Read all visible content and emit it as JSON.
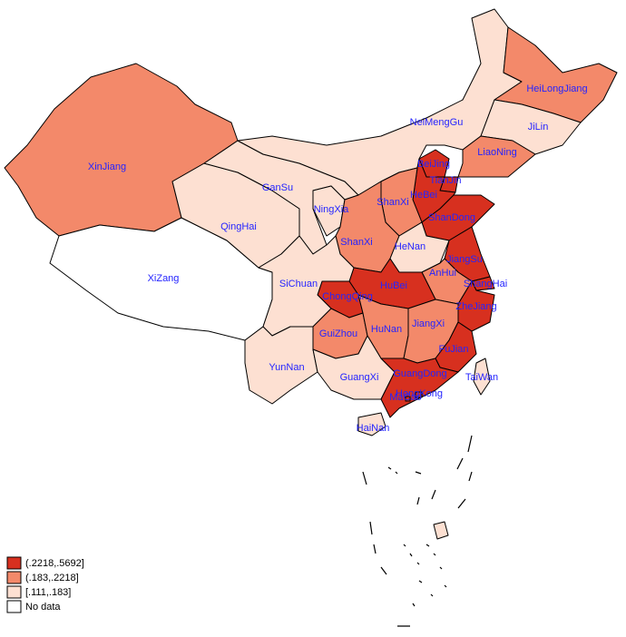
{
  "map": {
    "regions": [
      {
        "label": "XinJiang",
        "color": "#f3896a"
      },
      {
        "label": "XiZang",
        "color": "#ffffff"
      },
      {
        "label": "QingHai",
        "color": "#fde0d2"
      },
      {
        "label": "GanSu",
        "color": "#fde0d2"
      },
      {
        "label": "NingXia",
        "color": "#fde0d2"
      },
      {
        "label": "NeiMengGu",
        "color": "#fde0d2"
      },
      {
        "label": "HeiLongJiang",
        "color": "#f3896a"
      },
      {
        "label": "JiLin",
        "color": "#fde0d2"
      },
      {
        "label": "LiaoNing",
        "color": "#f3896a"
      },
      {
        "label": "BeiJing",
        "color": "#d7301f"
      },
      {
        "label": "TianJin",
        "color": "#d7301f"
      },
      {
        "label": "HeBei",
        "color": "#d7301f"
      },
      {
        "label": "ShanXi",
        "color": "#f3896a"
      },
      {
        "label": "ShanDong",
        "color": "#d7301f"
      },
      {
        "label": "ShanXi",
        "color": "#f3896a"
      },
      {
        "label": "HeNan",
        "color": "#fde0d2"
      },
      {
        "label": "JiangSu",
        "color": "#d7301f"
      },
      {
        "label": "AnHui",
        "color": "#f3896a"
      },
      {
        "label": "ShangHai",
        "color": "#d7301f"
      },
      {
        "label": "HuBei",
        "color": "#d7301f"
      },
      {
        "label": "ChongQing",
        "color": "#d7301f"
      },
      {
        "label": "SiChuan",
        "color": "#fde0d2"
      },
      {
        "label": "ZheJiang",
        "color": "#d7301f"
      },
      {
        "label": "GuiZhou",
        "color": "#f3896a"
      },
      {
        "label": "HuNan",
        "color": "#f3896a"
      },
      {
        "label": "JiangXi",
        "color": "#f3896a"
      },
      {
        "label": "FuJian",
        "color": "#d7301f"
      },
      {
        "label": "YunNan",
        "color": "#fde0d2"
      },
      {
        "label": "GuangXi",
        "color": "#fde0d2"
      },
      {
        "label": "GuangDong",
        "color": "#d7301f"
      },
      {
        "label": "TaiWan",
        "color": "#fde0d2"
      },
      {
        "label": "HongKong",
        "color": "#d7301f"
      },
      {
        "label": "MaCao",
        "color": "#d7301f"
      },
      {
        "label": "HaiNan",
        "color": "#fde0d2"
      }
    ],
    "legend": [
      {
        "label": "(.2218,.5692]",
        "color": "#d7301f"
      },
      {
        "label": "(.183,.2218]",
        "color": "#f3896a"
      },
      {
        "label": "[.111,.183]",
        "color": "#fde0d2"
      },
      {
        "label": "No data",
        "color": "#ffffff"
      }
    ]
  }
}
